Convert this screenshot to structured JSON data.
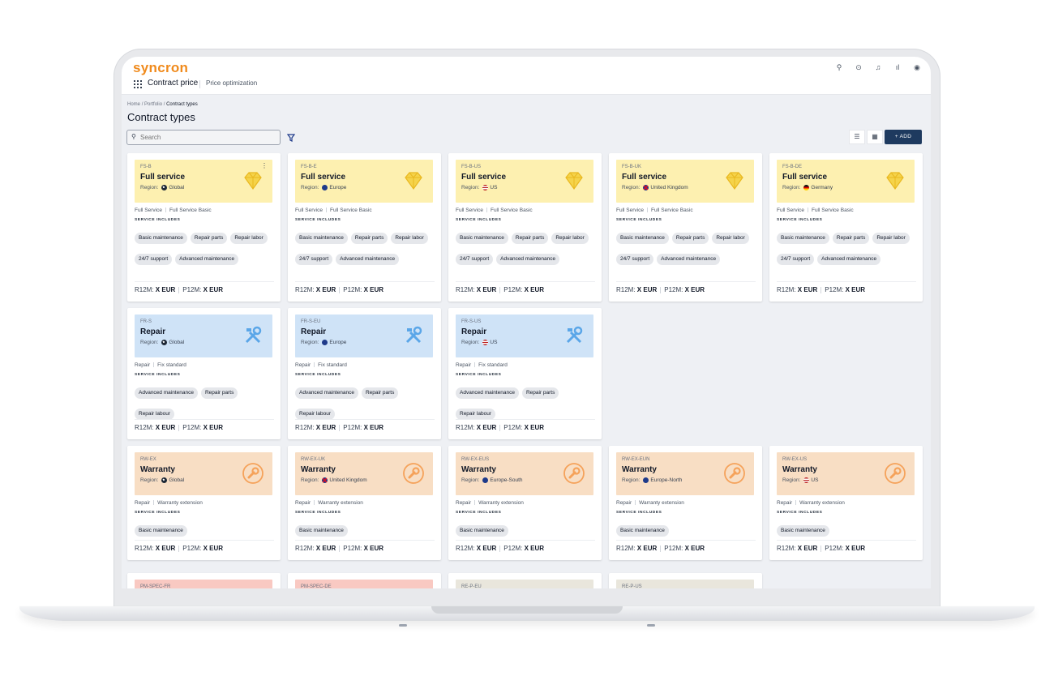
{
  "app": {
    "logo": "syncron",
    "title": "Contract price",
    "subtitle": "Price optimization",
    "icons": [
      "search-icon",
      "help-icon",
      "bell-icon",
      "chart-icon",
      "user-icon"
    ]
  },
  "breadcrumb": {
    "home": "Home",
    "portfolio": "Portfolio",
    "current": "Contract types",
    "separator": "/"
  },
  "page_title": "Contract types",
  "search": {
    "placeholder": "Search",
    "value": ""
  },
  "toolbar": {
    "add_label": "+ ADD"
  },
  "labels": {
    "region": "Region:",
    "service_includes": "SERVICE INCLUDES",
    "r12m": "R12M:",
    "p12m": "P12M:",
    "price_value": "X EUR"
  },
  "colors": {
    "full_service": "#fdf0b0",
    "repair": "#cfe3f7",
    "warranty": "#f8dec4",
    "pm_spec": "#f9c9c2",
    "re_p": "#e9e6dc",
    "primary": "#1e3a5f",
    "brand": "#f08a1c"
  },
  "cards": [
    {
      "code": "FS-B",
      "title": "Full service",
      "region": "Global",
      "flag": "globe",
      "cat1": "Full Service",
      "cat2": "Full Service Basic",
      "chips": [
        "Basic maintenance",
        "Repair parts",
        "Repair labor",
        "24/7 support",
        "Advanced maintenance"
      ],
      "icon": "diamond-icon",
      "theme": "full_service"
    },
    {
      "code": "FS-B-E",
      "title": "Full service",
      "region": "Europe",
      "flag": "eu",
      "cat1": "Full Service",
      "cat2": "Full Service Basic",
      "chips": [
        "Basic maintenance",
        "Repair parts",
        "Repair labor",
        "24/7 support",
        "Advanced maintenance"
      ],
      "icon": "diamond-icon",
      "theme": "full_service"
    },
    {
      "code": "FS-B-US",
      "title": "Full service",
      "region": "US",
      "flag": "us",
      "cat1": "Full Service",
      "cat2": "Full Service Basic",
      "chips": [
        "Basic maintenance",
        "Repair parts",
        "Repair labor",
        "24/7 support",
        "Advanced maintenance"
      ],
      "icon": "diamond-icon",
      "theme": "full_service"
    },
    {
      "code": "FS-B-UK",
      "title": "Full service",
      "region": "United Kingdom",
      "flag": "uk",
      "cat1": "Full Service",
      "cat2": "Full Service Basic",
      "chips": [
        "Basic maintenance",
        "Repair parts",
        "Repair labor",
        "24/7 support",
        "Advanced maintenance"
      ],
      "icon": "diamond-icon",
      "theme": "full_service"
    },
    {
      "code": "FS-B-DE",
      "title": "Full service",
      "region": "Germany",
      "flag": "de",
      "cat1": "Full Service",
      "cat2": "Full Service Basic",
      "chips": [
        "Basic maintenance",
        "Repair parts",
        "Repair labor",
        "24/7 support",
        "Advanced maintenance"
      ],
      "icon": "diamond-icon",
      "theme": "full_service"
    },
    {
      "code": "FR-S",
      "title": "Repair",
      "region": "Global",
      "flag": "globe",
      "cat1": "Repair",
      "cat2": "Fix standard",
      "chips": [
        "Advanced maintenance",
        "Repair parts",
        "Repair labour"
      ],
      "icon": "tools-icon",
      "theme": "repair"
    },
    {
      "code": "FR-S-EU",
      "title": "Repair",
      "region": "Europe",
      "flag": "eu",
      "cat1": "Repair",
      "cat2": "Fix standard",
      "chips": [
        "Advanced maintenance",
        "Repair parts",
        "Repair labour"
      ],
      "icon": "tools-icon",
      "theme": "repair"
    },
    {
      "code": "FR-S-US",
      "title": "Repair",
      "region": "US",
      "flag": "us",
      "cat1": "Repair",
      "cat2": "Fix standard",
      "chips": [
        "Advanced maintenance",
        "Repair parts",
        "Repair labour"
      ],
      "icon": "tools-icon",
      "theme": "repair"
    },
    {
      "code": "RW-EX",
      "title": "Warranty",
      "region": "Global",
      "flag": "globe",
      "cat1": "Repair",
      "cat2": "Warranty extension",
      "chips": [
        "Basic maintenance"
      ],
      "icon": "wrench-icon",
      "theme": "warranty"
    },
    {
      "code": "RW-EX-UK",
      "title": "Warranty",
      "region": "United Kingdom",
      "flag": "uk",
      "cat1": "Repair",
      "cat2": "Warranty extension",
      "chips": [
        "Basic maintenance"
      ],
      "icon": "wrench-icon",
      "theme": "warranty"
    },
    {
      "code": "RW-EX-EUS",
      "title": "Warranty",
      "region": "Europe-South",
      "flag": "eu",
      "cat1": "Repair",
      "cat2": "Warranty extension",
      "chips": [
        "Basic maintenance"
      ],
      "icon": "wrench-icon",
      "theme": "warranty"
    },
    {
      "code": "RW-EX-EUN",
      "title": "Warranty",
      "region": "Europe-North",
      "flag": "eu",
      "cat1": "Repair",
      "cat2": "Warranty extension",
      "chips": [
        "Basic maintenance"
      ],
      "icon": "wrench-icon",
      "theme": "warranty"
    },
    {
      "code": "RW-EX-US",
      "title": "Warranty",
      "region": "US",
      "flag": "us",
      "cat1": "Repair",
      "cat2": "Warranty extension",
      "chips": [
        "Basic maintenance"
      ],
      "icon": "wrench-icon",
      "theme": "warranty"
    },
    {
      "code": "PM-SPEC-FR",
      "theme": "pm_spec",
      "partial": true
    },
    {
      "code": "PM-SPEC-DE",
      "theme": "pm_spec",
      "partial": true
    },
    {
      "code": "RE-P-EU",
      "theme": "re_p",
      "partial": true,
      "icon": "gears-icon"
    },
    {
      "code": "RE-P-US",
      "theme": "re_p",
      "partial": true,
      "icon": "gears-icon"
    }
  ]
}
